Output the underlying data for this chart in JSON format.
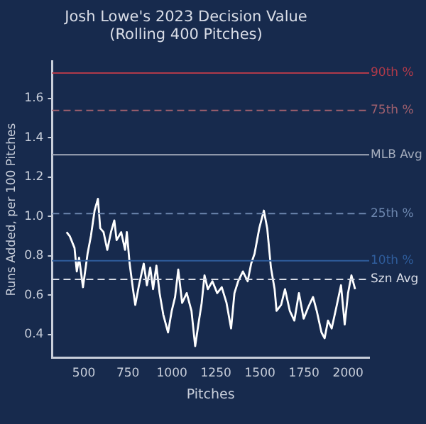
{
  "chart_data": {
    "type": "line",
    "title": "Josh Lowe's 2023 Decision Value\n(Rolling 400 Pitches)",
    "xlabel": "Pitches",
    "ylabel": "Runs Added, per 100 Pitches",
    "series": [
      {
        "color": "#ffffff",
        "x": [
          402,
          420,
          447,
          460,
          473,
          495,
          521,
          540,
          561,
          580,
          593,
          612,
          633,
          654,
          673,
          686,
          712,
          734,
          744,
          760,
          779,
          792,
          813,
          840,
          858,
          877,
          893,
          912,
          930,
          951,
          978,
          999,
          1018,
          1036,
          1058,
          1084,
          1111,
          1132,
          1150,
          1169,
          1185,
          1204,
          1230,
          1257,
          1283,
          1310,
          1336,
          1355,
          1376,
          1403,
          1430,
          1450,
          1469,
          1496,
          1522,
          1541,
          1562,
          1583,
          1594,
          1620,
          1642,
          1669,
          1695,
          1721,
          1748,
          1775,
          1801,
          1822,
          1849,
          1867,
          1886,
          1907,
          1934,
          1960,
          1981,
          2000,
          2019,
          2040
        ],
        "values": [
          0.92,
          0.9,
          0.84,
          0.72,
          0.79,
          0.64,
          0.81,
          0.9,
          1.03,
          1.09,
          0.94,
          0.92,
          0.83,
          0.92,
          0.98,
          0.88,
          0.92,
          0.83,
          0.92,
          0.76,
          0.63,
          0.55,
          0.65,
          0.76,
          0.65,
          0.74,
          0.63,
          0.75,
          0.61,
          0.5,
          0.41,
          0.52,
          0.59,
          0.73,
          0.56,
          0.61,
          0.52,
          0.34,
          0.45,
          0.56,
          0.7,
          0.63,
          0.67,
          0.61,
          0.64,
          0.56,
          0.43,
          0.61,
          0.67,
          0.72,
          0.67,
          0.76,
          0.81,
          0.94,
          1.03,
          0.94,
          0.74,
          0.63,
          0.52,
          0.55,
          0.63,
          0.52,
          0.47,
          0.61,
          0.48,
          0.54,
          0.59,
          0.52,
          0.41,
          0.38,
          0.47,
          0.43,
          0.54,
          0.65,
          0.45,
          0.61,
          0.7,
          0.63
        ]
      }
    ],
    "xlim": [
      320,
      2120
    ],
    "xticks": [
      500,
      750,
      1000,
      1250,
      1500,
      1750,
      2000
    ],
    "ylim": [
      0.28,
      1.79
    ],
    "yticks": [
      {
        "value": 0.4,
        "label": "0.4"
      },
      {
        "value": 0.6,
        "label": "0.6"
      },
      {
        "value": 0.8,
        "label": "0.8"
      },
      {
        "value": 1.0,
        "label": "1.0"
      },
      {
        "value": 1.2,
        "label": "1.2"
      },
      {
        "value": 1.4,
        "label": "1.4"
      },
      {
        "value": 1.6,
        "label": "1.6"
      }
    ],
    "ref_lines": [
      {
        "axis": "y",
        "value": 1.73,
        "label": "90th %",
        "color": "#b03a4a",
        "line_style": "solid"
      },
      {
        "axis": "y",
        "value": 1.54,
        "label": "75th %",
        "color": "#a0606e",
        "line_style": "dashed"
      },
      {
        "axis": "y",
        "value": 1.314,
        "label": "MLB Avg",
        "color": "#a3abbb",
        "line_style": "solid"
      },
      {
        "axis": "y",
        "value": 1.015,
        "label": "25th %",
        "color": "#6c86ae",
        "line_style": "dashed"
      },
      {
        "axis": "y",
        "value": 0.775,
        "label": "10th %",
        "color": "#2f5d9c",
        "line_style": "solid"
      },
      {
        "axis": "y",
        "value": 0.68,
        "label": "Szn Avg",
        "color": "#d8dce6",
        "line_style": "dashed"
      }
    ],
    "grid": false,
    "legend": false,
    "marker": "none",
    "line_style": "solid"
  }
}
